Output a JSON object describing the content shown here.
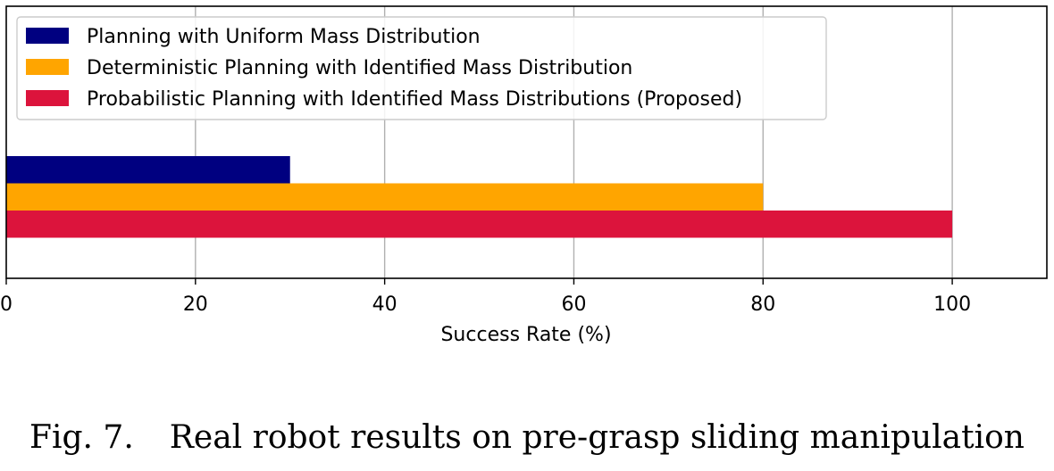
{
  "chart_data": {
    "type": "bar",
    "orientation": "horizontal",
    "categories": [
      ""
    ],
    "series": [
      {
        "name": "Planning with Uniform Mass Distribution",
        "values": [
          30
        ],
        "color": "#000080"
      },
      {
        "name": "Deterministic Planning with Identified Mass Distribution",
        "values": [
          80
        ],
        "color": "#FFA500"
      },
      {
        "name": "Probabilistic Planning with Identified Mass Distributions (Proposed)",
        "values": [
          100
        ],
        "color": "#DC143C"
      }
    ],
    "xlabel": "Success Rate (%)",
    "ylabel": "",
    "xlim": [
      0,
      110
    ],
    "xticks": [
      0,
      20,
      40,
      60,
      80,
      100
    ],
    "grid": "vertical",
    "legend_position": "upper-left"
  },
  "caption": {
    "figure_number": "Fig. 7.",
    "text": "Real robot results on pre-grasp sliding manipulation"
  }
}
